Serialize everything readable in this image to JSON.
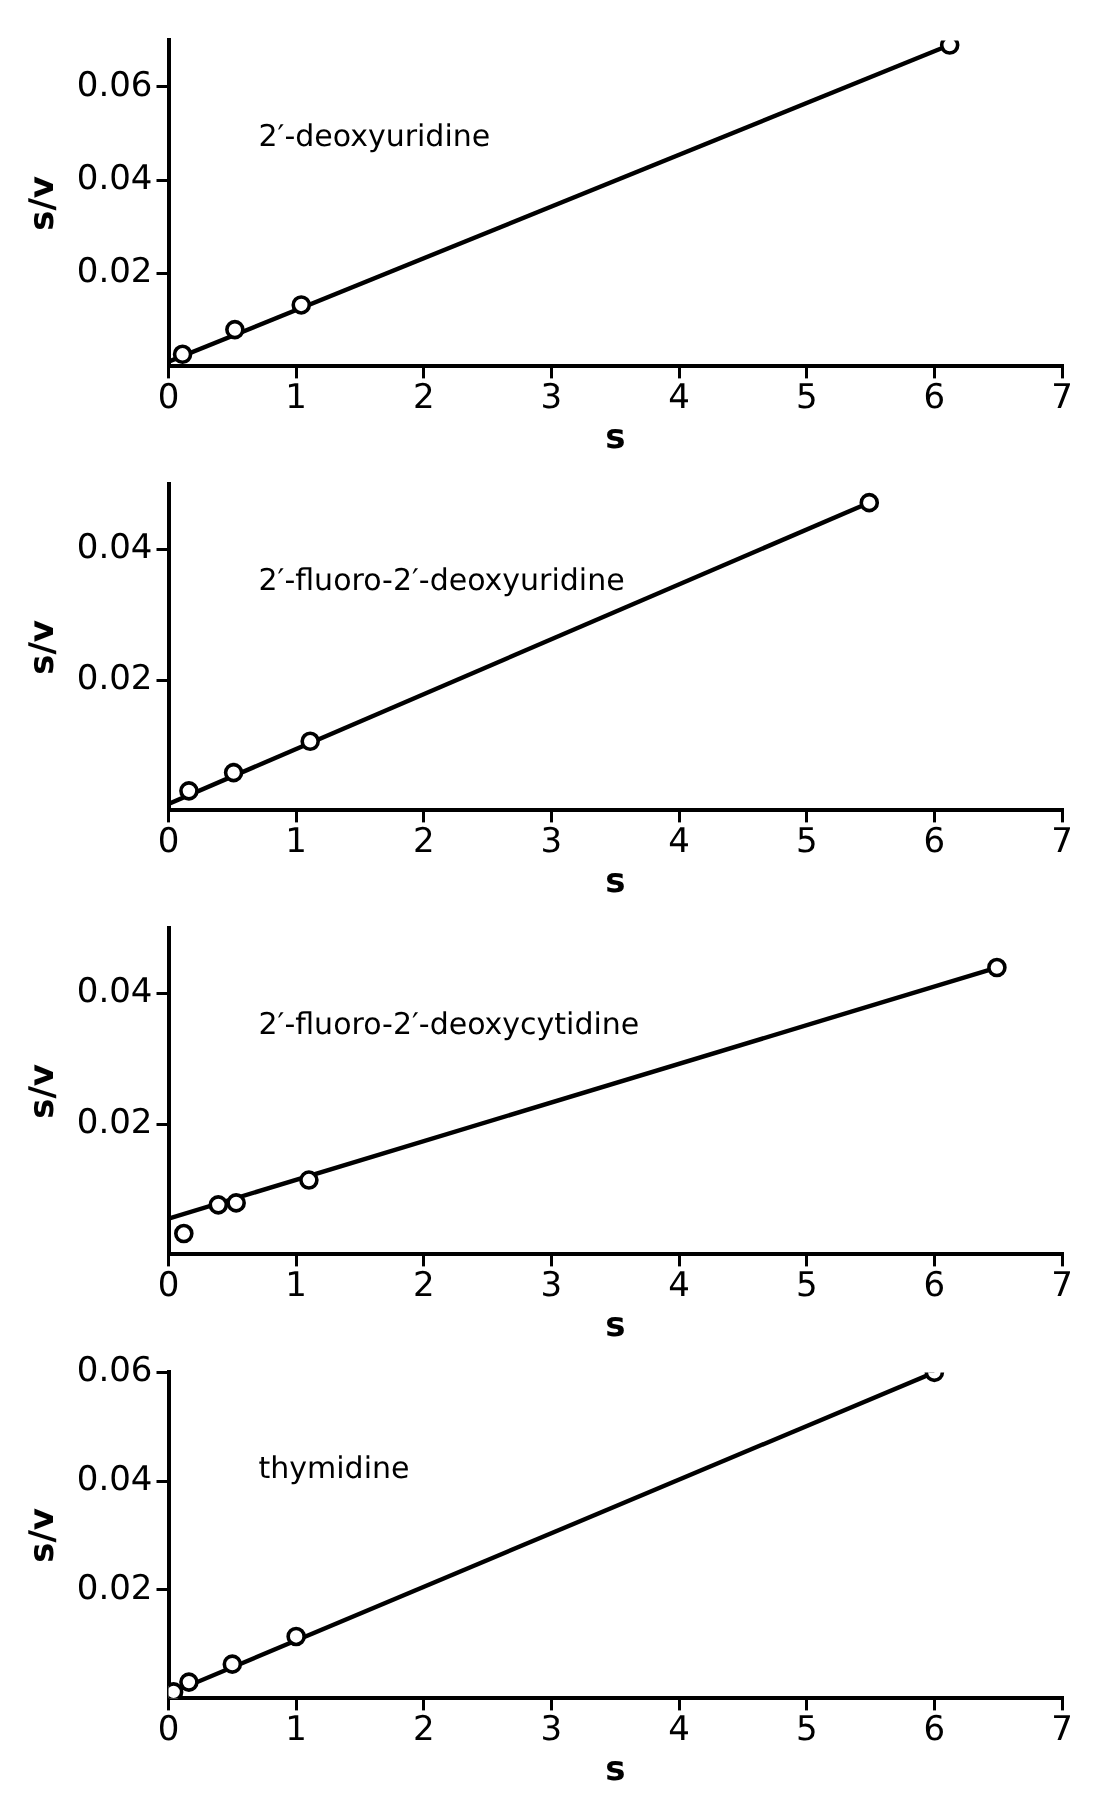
{
  "chart_data": [
    {
      "type": "scatter",
      "title": "2′-deoxyuridine",
      "xlabel": "s",
      "ylabel": "s/v",
      "xlim": [
        0,
        7
      ],
      "ylim": [
        0,
        0.07
      ],
      "xticks": [
        0,
        1,
        2,
        3,
        4,
        5,
        6,
        7
      ],
      "yticks": [
        0.02,
        0.04,
        0.06
      ],
      "legend": false,
      "grid": false,
      "series": [
        {
          "type": "scatter",
          "marker": "circle",
          "color": "#000000",
          "x": [
            0.11,
            0.52,
            1.04,
            6.12
          ],
          "values": [
            0.0026,
            0.0079,
            0.0132,
            0.069
          ]
        },
        {
          "type": "line",
          "marker": "none",
          "color": "#000000",
          "x": [
            0,
            6.12
          ],
          "values": [
            0.001,
            0.069
          ]
        }
      ]
    },
    {
      "type": "scatter",
      "title": "2′-fluoro-2′-deoxyuridine",
      "xlabel": "s",
      "ylabel": "s/v",
      "xlim": [
        0,
        7
      ],
      "ylim": [
        0,
        0.05
      ],
      "xticks": [
        0,
        1,
        2,
        3,
        4,
        5,
        6,
        7
      ],
      "yticks": [
        0.02,
        0.04
      ],
      "legend": false,
      "grid": false,
      "series": [
        {
          "type": "scatter",
          "marker": "circle",
          "color": "#000000",
          "x": [
            0.16,
            0.51,
            1.11,
            5.49
          ],
          "values": [
            0.003,
            0.0058,
            0.0106,
            0.0472
          ]
        },
        {
          "type": "line",
          "marker": "none",
          "color": "#000000",
          "x": [
            0,
            5.49
          ],
          "values": [
            0.001,
            0.0472
          ]
        }
      ]
    },
    {
      "type": "scatter",
      "title": "2′-fluoro-2′-deoxycytidine",
      "xlabel": "s",
      "ylabel": "s/v",
      "xlim": [
        0,
        7
      ],
      "ylim": [
        0,
        0.05
      ],
      "xticks": [
        0,
        1,
        2,
        3,
        4,
        5,
        6,
        7
      ],
      "yticks": [
        0.02,
        0.04
      ],
      "legend": false,
      "grid": false,
      "series": [
        {
          "type": "scatter",
          "marker": "circle",
          "color": "#000000",
          "x": [
            0.12,
            0.39,
            0.53,
            1.1,
            6.49
          ],
          "values": [
            0.0032,
            0.0076,
            0.0079,
            0.0114,
            0.044
          ]
        },
        {
          "type": "line",
          "marker": "none",
          "color": "#000000",
          "x": [
            0,
            6.49
          ],
          "values": [
            0.0055,
            0.044
          ]
        }
      ]
    },
    {
      "type": "scatter",
      "title": "thymidine",
      "xlabel": "s",
      "ylabel": "s/v",
      "xlim": [
        0,
        7
      ],
      "ylim": [
        0,
        0.06
      ],
      "xticks": [
        0,
        1,
        2,
        3,
        4,
        5,
        6,
        7
      ],
      "yticks": [
        0.02,
        0.04,
        0.06
      ],
      "legend": false,
      "grid": false,
      "series": [
        {
          "type": "scatter",
          "marker": "circle",
          "color": "#000000",
          "x": [
            0.04,
            0.16,
            0.5,
            1.0,
            6.0
          ],
          "values": [
            0.0012,
            0.003,
            0.0063,
            0.0114,
            0.06
          ]
        },
        {
          "type": "line",
          "marker": "none",
          "color": "#000000",
          "x": [
            0,
            6.0
          ],
          "values": [
            0.0008,
            0.06
          ]
        }
      ]
    }
  ]
}
